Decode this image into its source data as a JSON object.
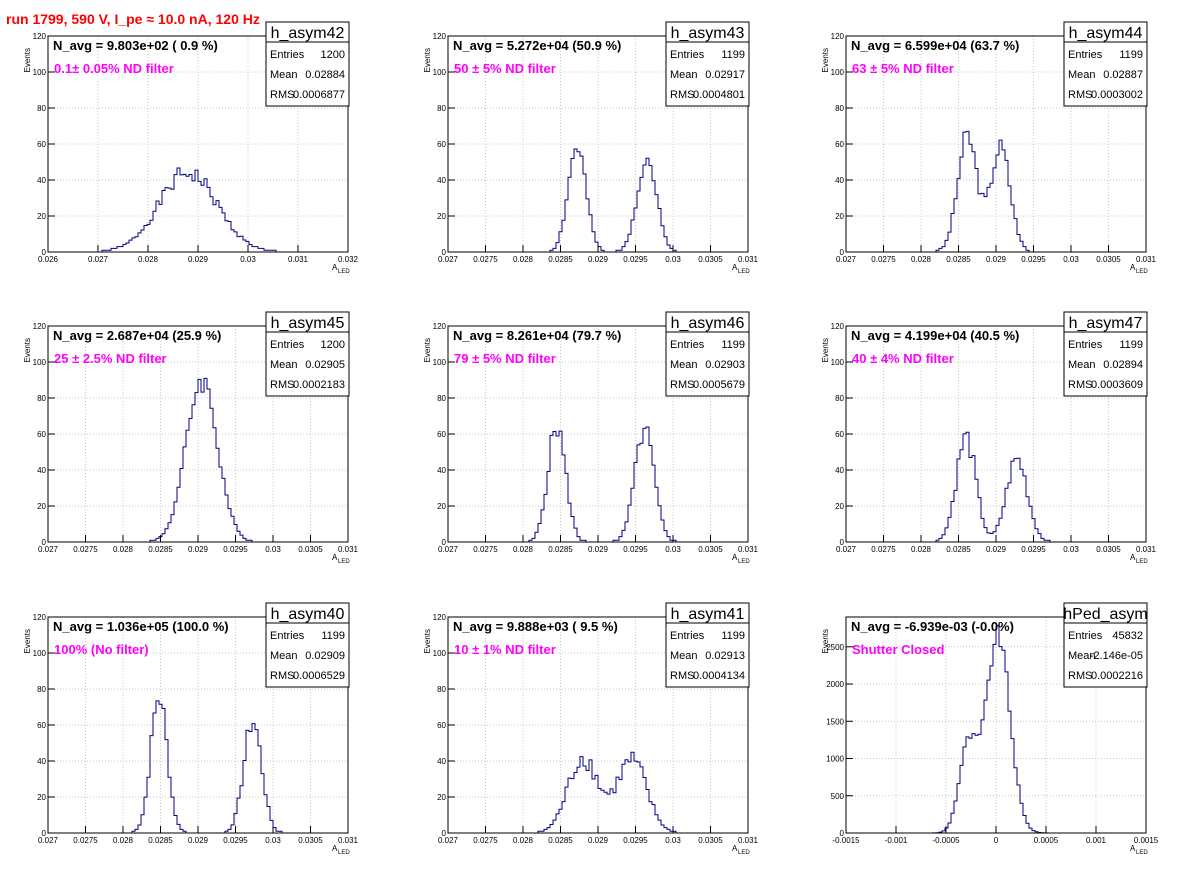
{
  "run_title": "run 1799,   590 V, I_pe ≈ 10.0 nA, 120 Hz",
  "ylabel": "Events",
  "xlabel_main": "A",
  "xlabel_sub": "LED",
  "stat_labels": {
    "entries": "Entries",
    "mean": "Mean",
    "rms": "RMS"
  },
  "colors": {
    "hist": "#000080",
    "annotation": "#ff00ff",
    "title": "#ff0000",
    "frame": "#000000"
  },
  "chart_data": [
    {
      "type": "histogram",
      "name": "h_asym42",
      "navg": "N_avg = 9.803e+02 ( 0.9 %)",
      "label": "0.1± 0.05% ND filter",
      "entries": "1200",
      "mean": "0.02884",
      "rms": "0.0006877",
      "xlim": [
        0.026,
        0.032
      ],
      "ylim": [
        0,
        120
      ],
      "xticks": [
        "0.026",
        "0.027",
        "0.028",
        "0.029",
        "0.03",
        "0.031",
        "0.032"
      ],
      "yticks": [
        "0",
        "20",
        "40",
        "60",
        "80",
        "100",
        "120"
      ],
      "peaks": [
        {
          "mu": 0.0288,
          "sigma": 0.00058,
          "height": 44
        }
      ],
      "noise_seed": 1,
      "noise_amp": 0.12
    },
    {
      "type": "histogram",
      "name": "h_asym43",
      "navg": "N_avg = 5.272e+04 (50.9 %)",
      "label": " 50 ± 5% ND filter",
      "entries": "1199",
      "mean": "0.02917",
      "rms": "0.0004801",
      "xlim": [
        0.027,
        0.031
      ],
      "ylim": [
        0,
        120
      ],
      "xticks": [
        "0.027",
        "0.0275",
        "0.028",
        "0.0285",
        "0.029",
        "0.0295",
        "0.03",
        "0.0305",
        "0.031"
      ],
      "yticks": [
        "0",
        "20",
        "40",
        "60",
        "80",
        "100",
        "120"
      ],
      "peaks": [
        {
          "mu": 0.02872,
          "sigma": 0.00012,
          "height": 58
        },
        {
          "mu": 0.02965,
          "sigma": 0.00013,
          "height": 52
        }
      ],
      "noise_seed": 2,
      "noise_amp": 0.1
    },
    {
      "type": "histogram",
      "name": "h_asym44",
      "navg": "N_avg = 6.599e+04 (63.7 %)",
      "label": " 63 ± 5% ND filter",
      "entries": "1199",
      "mean": "0.02887",
      "rms": "0.0003002",
      "xlim": [
        0.027,
        0.031
      ],
      "ylim": [
        0,
        120
      ],
      "xticks": [
        "0.027",
        "0.0275",
        "0.028",
        "0.0285",
        "0.029",
        "0.0295",
        "0.03",
        "0.0305",
        "0.031"
      ],
      "yticks": [
        "0",
        "20",
        "40",
        "60",
        "80",
        "100",
        "120"
      ],
      "peaks": [
        {
          "mu": 0.02862,
          "sigma": 0.00013,
          "height": 64
        },
        {
          "mu": 0.02906,
          "sigma": 0.00013,
          "height": 58
        }
      ],
      "noise_seed": 3,
      "noise_amp": 0.1
    },
    {
      "type": "histogram",
      "name": "h_asym45",
      "navg": "N_avg = 2.687e+04 (25.9 %)",
      "label": " 25 ± 2.5% ND filter",
      "entries": "1200",
      "mean": "0.02905",
      "rms": "0.0002183",
      "xlim": [
        0.027,
        0.031
      ],
      "ylim": [
        0,
        120
      ],
      "xticks": [
        "0.027",
        "0.0275",
        "0.028",
        "0.0285",
        "0.029",
        "0.0295",
        "0.03",
        "0.0305",
        "0.031"
      ],
      "yticks": [
        "0",
        "20",
        "40",
        "60",
        "80",
        "100",
        "120"
      ],
      "peaks": [
        {
          "mu": 0.02905,
          "sigma": 0.00021,
          "height": 90
        }
      ],
      "noise_seed": 4,
      "noise_amp": 0.08
    },
    {
      "type": "histogram",
      "name": "h_asym46",
      "navg": "N_avg = 8.261e+04 (79.7 %)",
      "label": " 79 ± 5% ND filter",
      "entries": "1199",
      "mean": "0.02903",
      "rms": "0.0005679",
      "xlim": [
        0.027,
        0.031
      ],
      "ylim": [
        0,
        120
      ],
      "xticks": [
        "0.027",
        "0.0275",
        "0.028",
        "0.0285",
        "0.029",
        "0.0295",
        "0.03",
        "0.0305",
        "0.031"
      ],
      "yticks": [
        "0",
        "20",
        "40",
        "60",
        "80",
        "100",
        "120"
      ],
      "peaks": [
        {
          "mu": 0.02845,
          "sigma": 0.00012,
          "height": 64
        },
        {
          "mu": 0.02962,
          "sigma": 0.00013,
          "height": 62
        }
      ],
      "noise_seed": 5,
      "noise_amp": 0.1
    },
    {
      "type": "histogram",
      "name": "h_asym47",
      "navg": "N_avg = 4.199e+04 (40.5 %)",
      "label": " 40 ± 4% ND filter",
      "entries": "1199",
      "mean": "0.02894",
      "rms": "0.0003609",
      "xlim": [
        0.027,
        0.031
      ],
      "ylim": [
        0,
        120
      ],
      "xticks": [
        "0.027",
        "0.0275",
        "0.028",
        "0.0285",
        "0.029",
        "0.0295",
        "0.03",
        "0.0305",
        "0.031"
      ],
      "yticks": [
        "0",
        "20",
        "40",
        "60",
        "80",
        "100",
        "120"
      ],
      "peaks": [
        {
          "mu": 0.0286,
          "sigma": 0.00013,
          "height": 58
        },
        {
          "mu": 0.02928,
          "sigma": 0.00014,
          "height": 46
        }
      ],
      "noise_seed": 6,
      "noise_amp": 0.12
    },
    {
      "type": "histogram",
      "name": "h_asym40",
      "navg": "N_avg = 1.036e+05 (100.0 %)",
      "label": " 100% (No filter)",
      "entries": "1199",
      "mean": "0.02909",
      "rms": "0.0006529",
      "xlim": [
        0.027,
        0.031
      ],
      "ylim": [
        0,
        120
      ],
      "xticks": [
        "0.027",
        "0.0275",
        "0.028",
        "0.0285",
        "0.029",
        "0.0295",
        "0.03",
        "0.0305",
        "0.031"
      ],
      "yticks": [
        "0",
        "20",
        "40",
        "60",
        "80",
        "100",
        "120"
      ],
      "peaks": [
        {
          "mu": 0.02848,
          "sigma": 0.00011,
          "height": 76
        },
        {
          "mu": 0.02973,
          "sigma": 0.00012,
          "height": 62
        }
      ],
      "noise_seed": 7,
      "noise_amp": 0.1
    },
    {
      "type": "histogram",
      "name": "h_asym41",
      "navg": "N_avg = 9.888e+03 ( 9.5 %)",
      "label": "10 ± 1% ND filter",
      "entries": "1199",
      "mean": "0.02913",
      "rms": "0.0004134",
      "xlim": [
        0.027,
        0.031
      ],
      "ylim": [
        0,
        120
      ],
      "xticks": [
        "0.027",
        "0.0275",
        "0.028",
        "0.0285",
        "0.029",
        "0.0295",
        "0.03",
        "0.0305",
        "0.031"
      ],
      "yticks": [
        "0",
        "20",
        "40",
        "60",
        "80",
        "100",
        "120"
      ],
      "peaks": [
        {
          "mu": 0.0288,
          "sigma": 0.0002,
          "height": 42
        },
        {
          "mu": 0.02945,
          "sigma": 0.0002,
          "height": 40
        }
      ],
      "noise_seed": 8,
      "noise_amp": 0.15
    },
    {
      "type": "histogram",
      "name": "hPed_asym",
      "navg": "N_avg = -6.939e-03 (-0.0%)",
      "label": "Shutter Closed",
      "entries": "45832",
      "mean": "-2.146e-05",
      "rms": "0.0002216",
      "xlim": [
        -0.0015,
        0.0015
      ],
      "ylim": [
        0,
        2900
      ],
      "xticks": [
        "-0.0015",
        "-0.001",
        "-0.0005",
        "0",
        "0.0005",
        "0.001",
        "0.0015"
      ],
      "yticks": [
        "0",
        "500",
        "1000",
        "1500",
        "2000",
        "2500"
      ],
      "peaks": [
        {
          "mu": -0.00028,
          "sigma": 9e-05,
          "height": 1150
        },
        {
          "mu": 2e-05,
          "sigma": 0.00012,
          "height": 2650
        }
      ],
      "noise_seed": 9,
      "noise_amp": 0.05
    }
  ]
}
